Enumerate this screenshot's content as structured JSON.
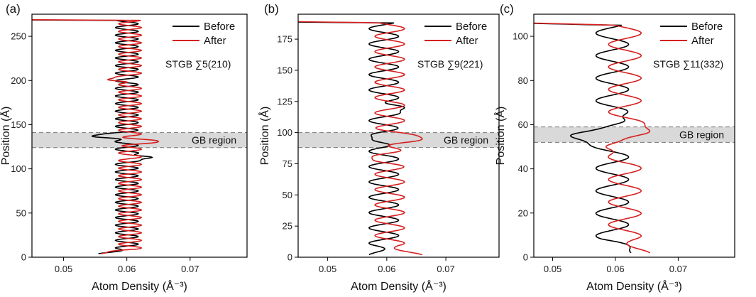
{
  "chart_data": [
    {
      "panel_label": "(a)",
      "type": "line",
      "xlabel": "Atom Density (Å⁻³)",
      "ylabel": "Position (Å)",
      "xlim": [
        0.045,
        0.079
      ],
      "ylim": [
        0,
        275
      ],
      "xticks": [
        0.05,
        0.06,
        0.07
      ],
      "xtick_labels": [
        "0.05",
        "0.06",
        "0.07"
      ],
      "yticks": [
        0,
        50,
        100,
        150,
        200,
        250
      ],
      "ytick_labels": [
        "0",
        "50",
        "100",
        "150",
        "200",
        "250"
      ],
      "annotation": "STGB ∑5(210)",
      "gb_label": "GB region",
      "gb_region": [
        124,
        141
      ],
      "legend": [
        "Before",
        "After"
      ],
      "osc": {
        "period": 8.6,
        "amp": 0.0018,
        "start": 4,
        "end": 268
      },
      "series": [
        {
          "name": "Before",
          "color": "#000000",
          "center": 0.06,
          "phase": 0,
          "edge": {
            "x": 0.0555,
            "y": 4
          },
          "surface_y": 270,
          "peak": {
            "x": 0.0545,
            "y": 137
          },
          "dip": {
            "x": 0.064,
            "y": 113
          }
        },
        {
          "name": "After",
          "color": "#d62020",
          "center": 0.0605,
          "phase": 3.14,
          "edge": {
            "x": 0.056,
            "y": 8
          },
          "surface_y": 271,
          "peak": {
            "x": 0.065,
            "y": 131
          },
          "dip": {
            "x": 0.057,
            "y": 201
          }
        }
      ]
    },
    {
      "panel_label": "(b)",
      "type": "line",
      "xlabel": "Atom Density (Å⁻³)",
      "ylabel": "Position (Å)",
      "xlim": [
        0.045,
        0.079
      ],
      "ylim": [
        0,
        195
      ],
      "xticks": [
        0.05,
        0.06,
        0.07
      ],
      "xtick_labels": [
        "0.05",
        "0.06",
        "0.07"
      ],
      "yticks": [
        0,
        25,
        50,
        75,
        100,
        125,
        150,
        175
      ],
      "ytick_labels": [
        "0",
        "25",
        "50",
        "75",
        "100",
        "125",
        "150",
        "175"
      ],
      "annotation": "STGB  ∑9(221)",
      "gb_label": "GB region",
      "gb_region": [
        88,
        100
      ],
      "legend": [
        "Before",
        "After"
      ],
      "osc": {
        "period": 12.3,
        "amp": 0.0025,
        "start": 2,
        "end": 188
      },
      "series": [
        {
          "name": "Before",
          "color": "#000000",
          "center": 0.0595,
          "phase": 0,
          "edge": {
            "x": 0.057,
            "y": 2
          },
          "surface_y": 191,
          "peak": {
            "x": 0.0575,
            "y": 95
          },
          "dip": {
            "x": 0.063,
            "y": 120
          }
        },
        {
          "name": "After",
          "color": "#d62020",
          "center": 0.0605,
          "phase": 3.14,
          "edge": {
            "x": 0.066,
            "y": 3
          },
          "surface_y": 192,
          "peak": {
            "x": 0.066,
            "y": 95
          },
          "dip": {
            "x": 0.0575,
            "y": 80
          }
        }
      ]
    },
    {
      "panel_label": "(c)",
      "type": "line",
      "xlabel": "Atom Density (Å⁻³)",
      "ylabel": "Position (Å)",
      "xlim": [
        0.047,
        0.079
      ],
      "ylim": [
        0,
        110
      ],
      "xticks": [
        0.05,
        0.06,
        0.07
      ],
      "xtick_labels": [
        "0.05",
        "0.06",
        "0.07"
      ],
      "yticks": [
        0,
        20,
        40,
        60,
        80,
        100
      ],
      "ytick_labels": [
        "0",
        "20",
        "40",
        "60",
        "80",
        "100"
      ],
      "annotation": "STGB ∑11(332)",
      "gb_label": "GB region",
      "gb_region": [
        52,
        59
      ],
      "legend": [
        "Before",
        "After"
      ],
      "osc": {
        "period": 10.2,
        "amp": 0.0026,
        "start": 2,
        "end": 105
      },
      "series": [
        {
          "name": "Before",
          "color": "#000000",
          "center": 0.0595,
          "phase": 0,
          "edge": {
            "x": 0.0625,
            "y": 2
          },
          "surface_y": 109,
          "peak": {
            "x": 0.0528,
            "y": 55
          },
          "dip": {
            "x": 0.0615,
            "y": 62
          }
        },
        {
          "name": "After",
          "color": "#d62020",
          "center": 0.0615,
          "phase": 3.14,
          "edge": {
            "x": 0.0655,
            "y": 2
          },
          "surface_y": 109,
          "peak": {
            "x": 0.0655,
            "y": 57
          },
          "dip": {
            "x": 0.0585,
            "y": 50
          }
        }
      ]
    }
  ]
}
